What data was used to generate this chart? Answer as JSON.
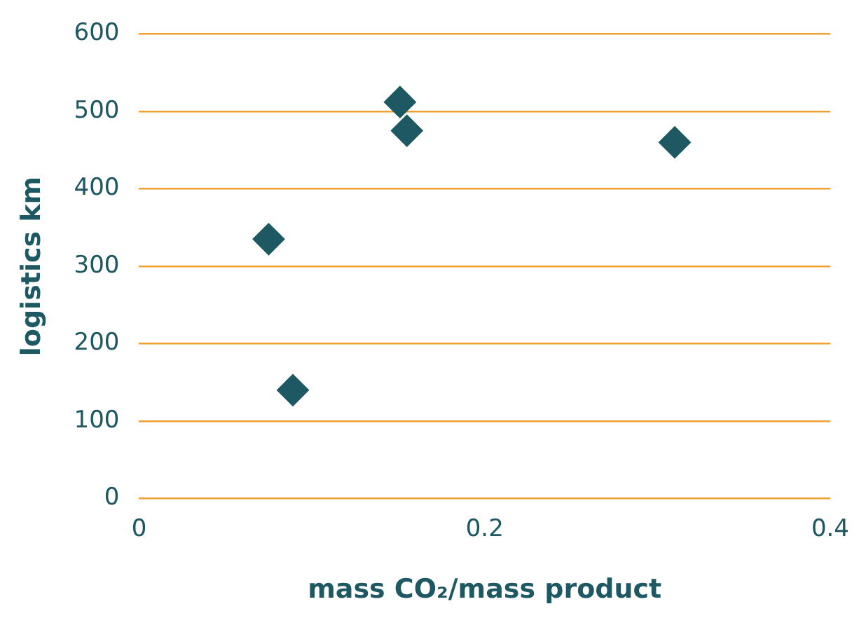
{
  "chart_data": {
    "type": "scatter",
    "xlabel": "mass CO₂/mass product",
    "ylabel": "logistics km",
    "x": [
      0.075,
      0.089,
      0.151,
      0.155,
      0.31
    ],
    "values": [
      335,
      140,
      512,
      475,
      460
    ],
    "color": "#1d5863",
    "marker": "diamond",
    "xlim": [
      0,
      0.4
    ],
    "xticks": [
      0,
      0.2,
      0.4
    ],
    "ylim": [
      0,
      600
    ],
    "yticks": [
      0,
      100,
      200,
      300,
      400,
      500,
      600
    ],
    "grid": "y",
    "legend": false
  }
}
